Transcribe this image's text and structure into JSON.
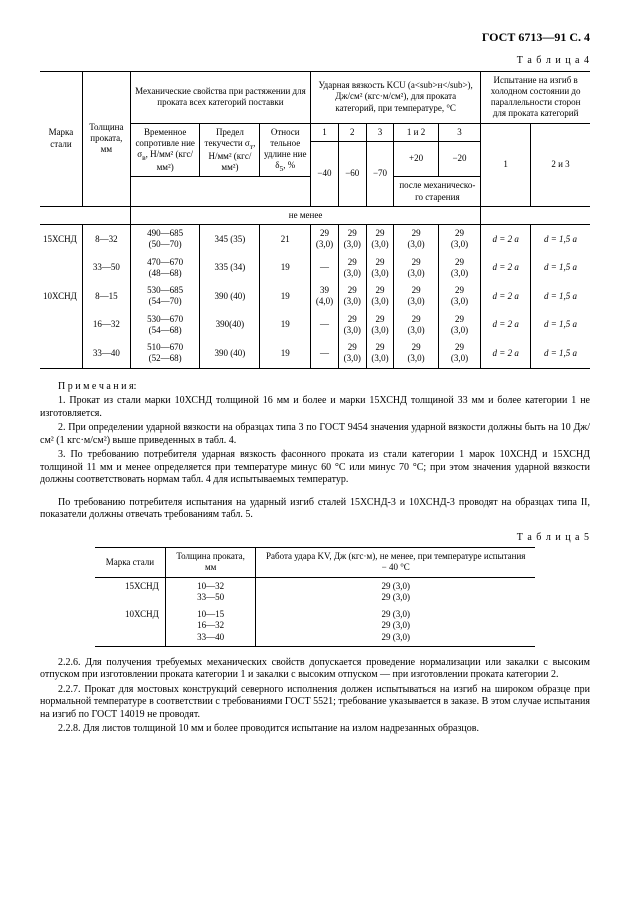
{
  "header": "ГОСТ 6713—91 С. 4",
  "table4": {
    "label": "Т а б л и ц а 4",
    "head": {
      "mark": "Марка стали",
      "thick": "Толщина проката, мм",
      "mech_group": "Механические свойства при растяжении для проката всех категорий поставки",
      "temp": "Временное сопротивле ние σ<sub>в</sub>, Н/мм² (кгс/мм²)",
      "yield": "Предел текучести σ<sub>т</sub>, Н/мм² (кгс/мм²)",
      "elong": "Относи тельное удлине ние δ<sub>5</sub>, %",
      "impact_group": "Ударная вязкость KCU (a<sub>н</sub>), Дж/см² (кгс·м/см²), для проката категорий, при температуре, °C",
      "c1": "1",
      "c2": "2",
      "c3": "3",
      "c12": "1 и 2",
      "c3b": "3",
      "t40": "−40",
      "t60": "−60",
      "t70": "−70",
      "tp20": "+20",
      "tm20": "−20",
      "aging": "после механическо-го старения",
      "notless": "не менее",
      "bend_group": "Испытание на изгиб в холодном состоянии до параллельности сторон для проката категорий",
      "b1": "1",
      "b23": "2 и 3"
    },
    "rows": [
      {
        "mark": "15ХСНД",
        "thick": "8—32",
        "temp": "490—685 (50—70)",
        "yield": "345 (35)",
        "elong": "21",
        "v1": "29 (3,0)",
        "v2": "29 (3,0)",
        "v3": "29 (3,0)",
        "v4": "29 (3,0)",
        "v5": "29 (3,0)",
        "b1": "d = 2 a",
        "b23": "d = 1,5 a"
      },
      {
        "mark": "",
        "thick": "33—50",
        "temp": "470—670 (48—68)",
        "yield": "335 (34)",
        "elong": "19",
        "v1": "—",
        "v2": "29 (3,0)",
        "v3": "29 (3,0)",
        "v4": "29 (3,0)",
        "v5": "29 (3,0)",
        "b1": "d = 2 a",
        "b23": "d = 1,5 a"
      },
      {
        "mark": "10ХСНД",
        "thick": "8—15",
        "temp": "530—685 (54—70)",
        "yield": "390 (40)",
        "elong": "19",
        "v1": "39 (4,0)",
        "v2": "29 (3,0)",
        "v3": "29 (3,0)",
        "v4": "29 (3,0)",
        "v5": "29 (3,0)",
        "b1": "d = 2 a",
        "b23": "d = 1,5 a"
      },
      {
        "mark": "",
        "thick": "16—32",
        "temp": "530—670 (54—68)",
        "yield": "390(40)",
        "elong": "19",
        "v1": "—",
        "v2": "29 (3,0)",
        "v3": "29 (3,0)",
        "v4": "29 (3,0)",
        "v5": "29 (3,0)",
        "b1": "d = 2 a",
        "b23": "d = 1,5 a"
      },
      {
        "mark": "",
        "thick": "33—40",
        "temp": "510—670 (52—68)",
        "yield": "390 (40)",
        "elong": "19",
        "v1": "—",
        "v2": "29 (3,0)",
        "v3": "29 (3,0)",
        "v4": "29 (3,0)",
        "v5": "29 (3,0)",
        "b1": "d = 2 a",
        "b23": "d = 1,5 a"
      }
    ]
  },
  "notes": {
    "title": "П р и м е ч а н и я:",
    "n1": "1. Прокат из стали марки 10ХСНД толщиной 16 мм и более и марки 15ХСНД толщиной 33 мм и более категории 1 не изготовляется.",
    "n2": "2. При определении ударной вязкости на образцах типа 3 по ГОСТ 9454 значения ударной вязкости должны быть на 10 Дж/см² (1 кгс·м/см²) выше приведенных в табл. 4.",
    "n3": "3. По требованию потребителя ударная вязкость фасонного проката из стали категории 1 марок 10ХСНД и 15ХСНД толщиной 11 мм и менее определяется при температуре минус 60 °C или минус 70 °C; при этом значения ударной вязкости должны соответствовать нормам табл. 4 для испытываемых температур."
  },
  "mid_para": "По требованию потребителя испытания на ударный изгиб сталей 15ХСНД-3 и 10ХСНД-3 проводят на образцах типа II, показатели должны отвечать требованиям табл. 5.",
  "table5": {
    "label": "Т а б л и ц а 5",
    "head": {
      "mark": "Марка стали",
      "thick": "Толщина проката, мм",
      "kv": "Работа удара KV, Дж (кгс·м), не менее, при температуре испытания − 40 °C"
    },
    "rows": [
      {
        "mark": "15ХСНД",
        "thick": "10—32",
        "kv": "29 (3,0)"
      },
      {
        "mark": "",
        "thick": "33—50",
        "kv": "29 (3,0)"
      },
      {
        "mark": "10ХСНД",
        "thick": "10—15",
        "kv": "29 (3,0)"
      },
      {
        "mark": "",
        "thick": "16—32",
        "kv": "29 (3,0)"
      },
      {
        "mark": "",
        "thick": "33—40",
        "kv": "29 (3,0)"
      }
    ]
  },
  "paras": {
    "p226": "2.2.6. Для получения требуемых механических свойств допускается проведение нормализации или закалки с высоким отпуском при изготовлении проката категории 1 и закалки с высоким отпуском — при изготовлении проката категории 2.",
    "p227": "2.2.7. Прокат для мостовых конструкций северного исполнения должен испытываться на изгиб на широком образце при нормальной температуре в соответствии с требованиями ГОСТ 5521; требование указывается в заказе. В этом случае испытания на изгиб по ГОСТ 14019 не проводят.",
    "p228": "2.2.8. Для листов толщиной 10 мм и более проводится испытание на излом надрезанных образцов."
  }
}
